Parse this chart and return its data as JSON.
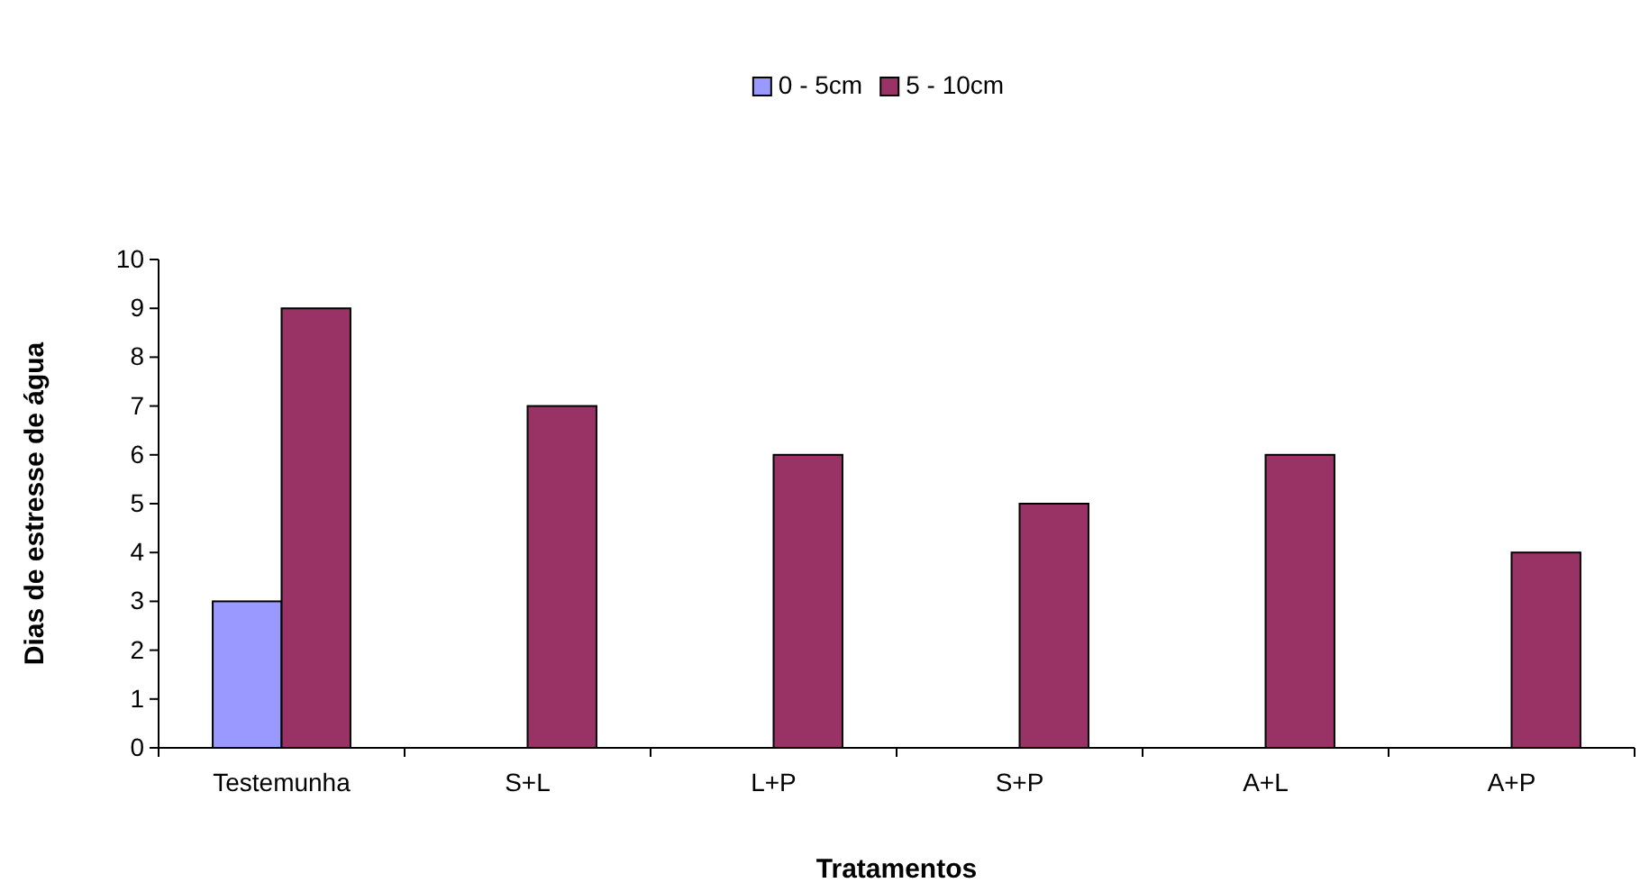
{
  "chart_data": {
    "type": "bar",
    "xlabel": "Tratamentos",
    "ylabel": "Dias de estresse de água",
    "categories": [
      "Testemunha",
      "S+L",
      "L+P",
      "S+P",
      "A+L",
      "A+P"
    ],
    "series": [
      {
        "name": "0 - 5cm",
        "color": "#9999ff",
        "values": [
          3,
          0,
          0,
          0,
          0,
          0
        ]
      },
      {
        "name": "5 - 10cm",
        "color": "#993366",
        "values": [
          9,
          7,
          6,
          5,
          6,
          4
        ]
      }
    ],
    "ylim": [
      0,
      10
    ],
    "yticks": [
      0,
      1,
      2,
      3,
      4,
      5,
      6,
      7,
      8,
      9,
      10
    ],
    "grid": false,
    "legend": "top"
  }
}
